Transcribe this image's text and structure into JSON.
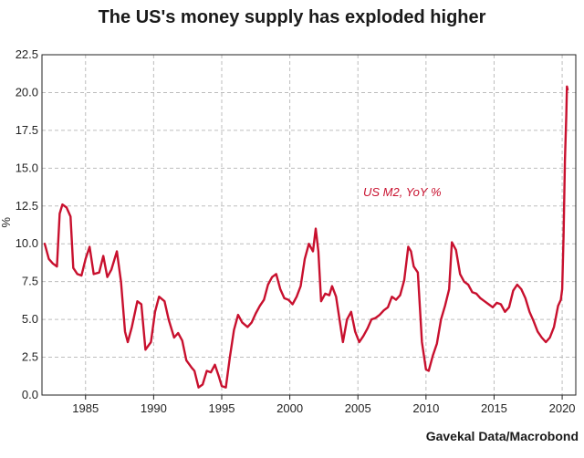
{
  "chart_data": {
    "type": "line",
    "title": "The US's money supply has exploded higher",
    "ylabel": "%",
    "source": "Gavekal Data/Macrobond",
    "ylim": [
      0,
      22.5
    ],
    "xlim": [
      1981.8,
      2021.0
    ],
    "y_ticks": [
      "0.0",
      "2.5",
      "5.0",
      "7.5",
      "10.0",
      "12.5",
      "15.0",
      "17.5",
      "20.0",
      "22.5"
    ],
    "x_ticks": [
      "1985",
      "1990",
      "1995",
      "2000",
      "2005",
      "2010",
      "2015",
      "2020"
    ],
    "grid": true,
    "series": [
      {
        "name": "US M2, YoY %",
        "color": "#c8102e",
        "x": [
          1982.0,
          1982.3,
          1982.6,
          1982.9,
          1983.1,
          1983.3,
          1983.6,
          1983.9,
          1984.1,
          1984.4,
          1984.7,
          1985.0,
          1985.3,
          1985.6,
          1986.0,
          1986.3,
          1986.6,
          1986.9,
          1987.3,
          1987.6,
          1987.9,
          1988.1,
          1988.4,
          1988.8,
          1989.1,
          1989.4,
          1989.8,
          1990.1,
          1990.4,
          1990.8,
          1991.1,
          1991.5,
          1991.8,
          1992.1,
          1992.4,
          1992.8,
          1993.0,
          1993.3,
          1993.6,
          1993.9,
          1994.2,
          1994.5,
          1994.8,
          1995.0,
          1995.3,
          1995.6,
          1995.9,
          1996.2,
          1996.5,
          1996.9,
          1997.2,
          1997.5,
          1997.8,
          1998.1,
          1998.4,
          1998.7,
          1999.0,
          1999.3,
          1999.6,
          1999.9,
          2000.2,
          2000.5,
          2000.8,
          2001.1,
          2001.4,
          2001.7,
          2001.9,
          2002.1,
          2002.3,
          2002.6,
          2002.9,
          2003.1,
          2003.4,
          2003.7,
          2003.9,
          2004.2,
          2004.5,
          2004.8,
          2005.1,
          2005.4,
          2005.7,
          2006.0,
          2006.3,
          2006.6,
          2006.9,
          2007.2,
          2007.5,
          2007.8,
          2008.1,
          2008.4,
          2008.7,
          2008.9,
          2009.1,
          2009.4,
          2009.7,
          2010.0,
          2010.2,
          2010.5,
          2010.8,
          2011.1,
          2011.4,
          2011.7,
          2011.9,
          2012.2,
          2012.5,
          2012.8,
          2013.1,
          2013.4,
          2013.7,
          2014.0,
          2014.3,
          2014.6,
          2014.9,
          2015.2,
          2015.5,
          2015.8,
          2016.1,
          2016.4,
          2016.7,
          2017.0,
          2017.3,
          2017.6,
          2017.9,
          2018.2,
          2018.5,
          2018.8,
          2019.1,
          2019.4,
          2019.7,
          2019.9,
          2020.0,
          2020.1,
          2020.2,
          2020.3,
          2020.35,
          2020.4
        ],
        "values": [
          10.0,
          9.0,
          8.7,
          8.5,
          12.0,
          12.6,
          12.4,
          11.8,
          8.4,
          8.0,
          7.9,
          9.0,
          9.8,
          8.0,
          8.1,
          9.2,
          7.8,
          8.3,
          9.5,
          7.5,
          4.2,
          3.5,
          4.5,
          6.2,
          6.0,
          3.0,
          3.5,
          5.5,
          6.5,
          6.2,
          5.0,
          3.8,
          4.1,
          3.6,
          2.3,
          1.8,
          1.6,
          0.5,
          0.7,
          1.6,
          1.5,
          2.0,
          1.2,
          0.6,
          0.5,
          2.5,
          4.3,
          5.3,
          4.8,
          4.5,
          4.8,
          5.4,
          5.9,
          6.3,
          7.3,
          7.8,
          8.0,
          7.0,
          6.4,
          6.3,
          6.0,
          6.5,
          7.2,
          9.0,
          10.0,
          9.5,
          11.0,
          9.5,
          6.2,
          6.7,
          6.6,
          7.2,
          6.5,
          4.7,
          3.5,
          5.0,
          5.5,
          4.2,
          3.5,
          3.9,
          4.4,
          5.0,
          5.1,
          5.3,
          5.6,
          5.8,
          6.5,
          6.3,
          6.6,
          7.6,
          9.8,
          9.5,
          8.5,
          8.1,
          3.5,
          1.7,
          1.6,
          2.6,
          3.4,
          5.0,
          5.9,
          7.0,
          10.1,
          9.6,
          8.0,
          7.5,
          7.3,
          6.8,
          6.7,
          6.4,
          6.2,
          6.0,
          5.8,
          6.1,
          6.0,
          5.5,
          5.8,
          6.9,
          7.3,
          7.0,
          6.4,
          5.5,
          4.9,
          4.2,
          3.8,
          3.5,
          3.8,
          4.5,
          5.9,
          6.3,
          7.0,
          10.5,
          15.5,
          18.5,
          20.4,
          20.2
        ]
      }
    ]
  }
}
